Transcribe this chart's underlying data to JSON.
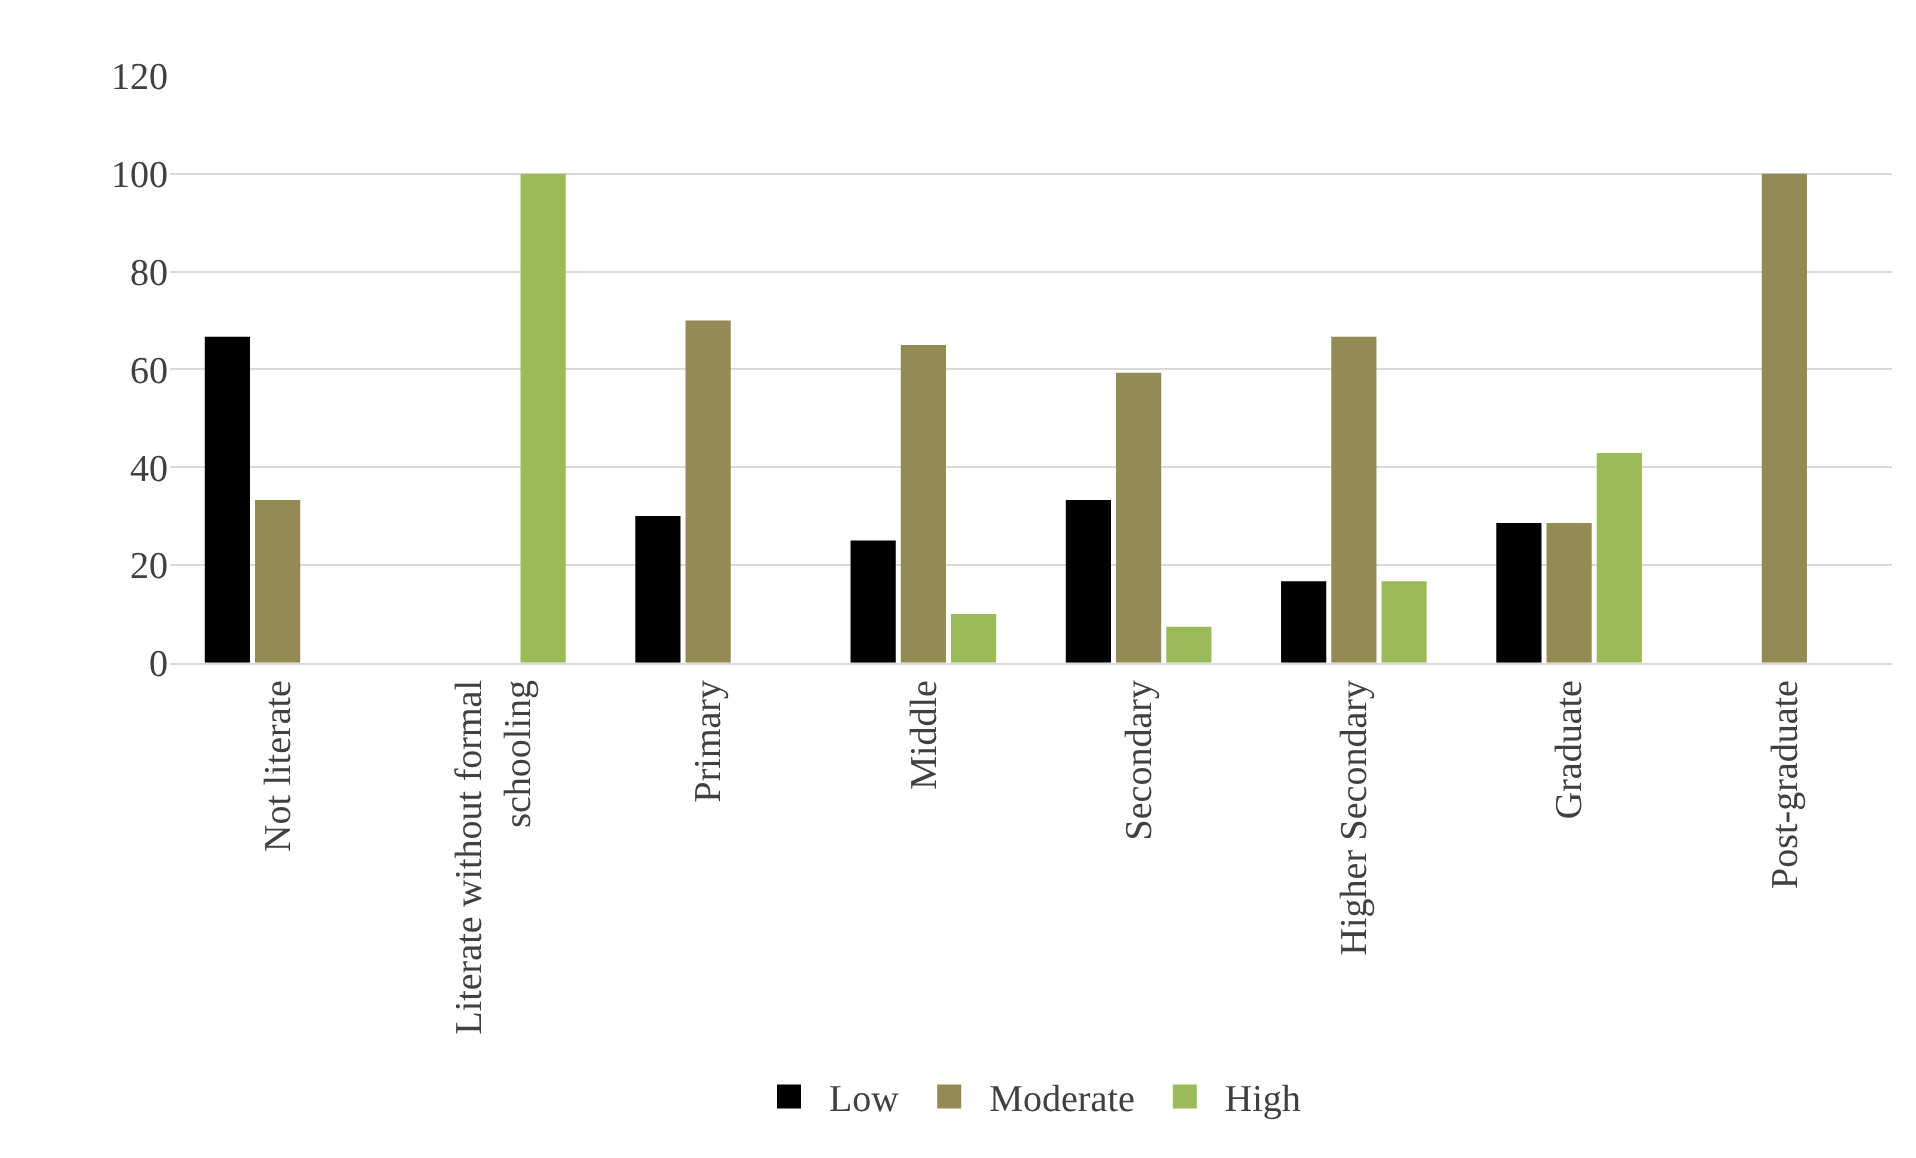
{
  "chart_data": {
    "type": "bar",
    "categories": [
      "Not literate",
      "Literate without formal schooling",
      "Primary",
      "Middle",
      "Secondary",
      "Higher Secondary",
      "Graduate",
      "Post-graduate"
    ],
    "series": [
      {
        "name": "Low",
        "color": "#000000",
        "values": [
          66.7,
          0,
          30,
          25,
          33.3,
          16.7,
          28.6,
          0
        ]
      },
      {
        "name": "Moderate",
        "color": "#948a54",
        "values": [
          33.3,
          0,
          70,
          65,
          59.3,
          66.7,
          28.6,
          100
        ]
      },
      {
        "name": "High",
        "color": "#9bbb59",
        "values": [
          0,
          100,
          0,
          10,
          7.4,
          16.7,
          42.9,
          0
        ]
      }
    ],
    "ylim": [
      0,
      120
    ],
    "yticks": [
      0,
      20,
      40,
      60,
      80,
      100,
      120
    ],
    "grid": "y",
    "legend": "bottom"
  }
}
